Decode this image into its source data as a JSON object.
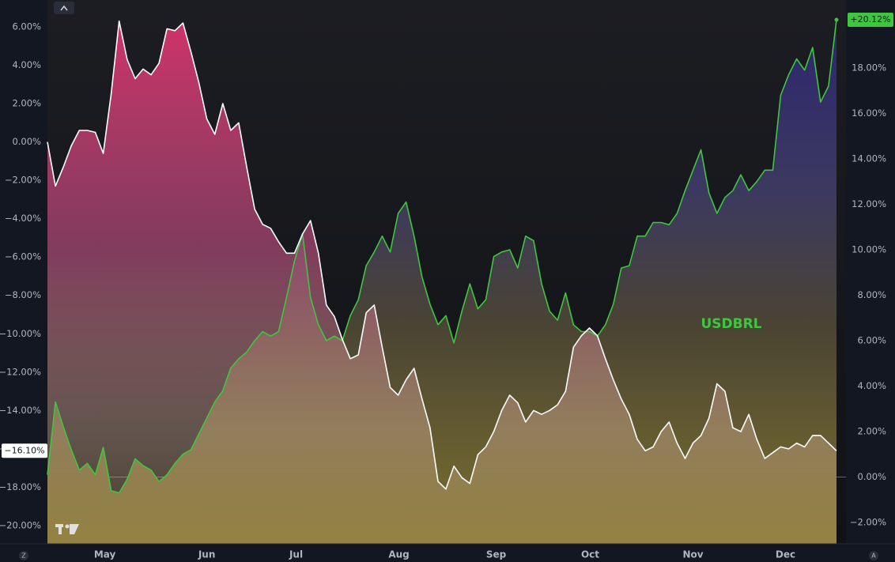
{
  "chart_data": {
    "type": "line",
    "xticks": [
      {
        "value": 7.2,
        "label": "May"
      },
      {
        "value": 20.0,
        "label": "Jun"
      },
      {
        "value": 31.2,
        "label": "Jul"
      },
      {
        "value": 44.1,
        "label": "Aug"
      },
      {
        "value": 56.3,
        "label": "Sep"
      },
      {
        "value": 68.1,
        "label": "Oct"
      },
      {
        "value": 81.0,
        "label": "Nov"
      },
      {
        "value": 92.6,
        "label": "Dec"
      }
    ],
    "ylim": [
      -20.95,
      7.4
    ],
    "yticks": [
      {
        "value": 6,
        "label": "6.00%"
      },
      {
        "value": 4,
        "label": "4.00%"
      },
      {
        "value": 2,
        "label": "2.00%"
      },
      {
        "value": 0,
        "label": "0.00%"
      },
      {
        "value": -2,
        "label": "−2.00%"
      },
      {
        "value": -4,
        "label": "−4.00%"
      },
      {
        "value": -6,
        "label": "−6.00%"
      },
      {
        "value": -8,
        "label": "−8.00%"
      },
      {
        "value": -10,
        "label": "−10.00%"
      },
      {
        "value": -12,
        "label": "−12.00%"
      },
      {
        "value": -14,
        "label": "−14.00%"
      },
      {
        "value": -16,
        "label": "−16.00%"
      },
      {
        "value": -18,
        "label": "−18.00%"
      },
      {
        "value": -20,
        "label": "−20.00%"
      }
    ],
    "y2lim": [
      -2.94,
      20.99
    ],
    "y2ticks": [
      {
        "value": 18,
        "label": "18.00%"
      },
      {
        "value": 16,
        "label": "16.00%"
      },
      {
        "value": 14,
        "label": "14.00%"
      },
      {
        "value": 12,
        "label": "12.00%"
      },
      {
        "value": 10,
        "label": "10.00%"
      },
      {
        "value": 8,
        "label": "8.00%"
      },
      {
        "value": 6,
        "label": "6.00%"
      },
      {
        "value": 4,
        "label": "4.00%"
      },
      {
        "value": 2,
        "label": "2.00%"
      },
      {
        "value": 0,
        "label": "0.00%"
      },
      {
        "value": -2,
        "label": "−2.00%"
      }
    ],
    "series": [
      {
        "color": "#ffffff",
        "axis": "y",
        "values": [
          0.0,
          -2.3,
          -1.3,
          -0.2,
          0.6,
          0.6,
          0.5,
          -0.6,
          2.5,
          6.3,
          4.3,
          3.3,
          3.8,
          3.5,
          4.1,
          5.9,
          5.8,
          6.2,
          4.7,
          3.1,
          1.2,
          0.4,
          2.0,
          0.6,
          1.0,
          -1.3,
          -3.5,
          -4.3,
          -4.5,
          -5.2,
          -5.8,
          -5.8,
          -4.8,
          -4.1,
          -5.8,
          -8.5,
          -9.1,
          -10.3,
          -11.3,
          -11.1,
          -8.9,
          -8.5,
          -10.7,
          -12.8,
          -13.2,
          -12.4,
          -11.8,
          -13.4,
          -14.9,
          -17.7,
          -18.1,
          -16.9,
          -17.5,
          -17.8,
          -16.3,
          -15.9,
          -15.1,
          -14.0,
          -13.2,
          -13.6,
          -14.6,
          -14.0,
          -14.2,
          -14.0,
          -13.7,
          -13.0,
          -10.7,
          -10.1,
          -9.7,
          -10.1,
          -11.3,
          -12.4,
          -13.4,
          -14.2,
          -15.5,
          -16.1,
          -15.9,
          -15.1,
          -14.6,
          -15.7,
          -16.5,
          -15.7,
          -15.3,
          -14.4,
          -12.6,
          -13.0,
          -14.9,
          -15.1,
          -14.2,
          -15.5,
          -16.5,
          -16.2,
          -15.9,
          -16.0,
          -15.7,
          -15.9,
          -15.3,
          -15.3,
          -15.7,
          -16.1
        ],
        "value_labels": [
          null,
          null,
          null,
          null,
          null,
          null,
          null,
          null,
          null,
          null,
          null,
          null,
          null,
          null,
          null,
          null,
          null,
          null,
          null,
          null,
          null,
          null,
          null,
          null,
          null,
          null,
          null,
          null,
          null,
          null,
          null,
          null,
          null,
          null,
          null,
          null,
          null,
          null,
          null,
          null,
          null,
          null,
          null,
          null,
          null,
          null,
          null,
          null,
          null,
          null,
          null,
          null,
          null,
          null,
          null,
          null,
          null,
          null,
          null,
          null,
          null,
          null,
          null,
          null,
          null,
          null,
          null,
          null,
          null,
          null,
          null,
          null,
          null,
          null,
          null,
          null,
          null,
          null,
          null,
          null,
          null,
          null,
          null,
          null,
          null,
          null,
          null,
          null,
          null,
          null,
          null,
          null,
          null,
          null,
          null,
          null,
          null,
          null,
          null,
          "−16.10%"
        ]
      },
      {
        "name": "USDBRL",
        "color": "#3fc63f",
        "axis": "y2",
        "values": [
          0.1,
          3.3,
          2.2,
          1.2,
          0.3,
          0.6,
          0.1,
          1.3,
          -0.6,
          -0.7,
          -0.1,
          0.8,
          0.5,
          0.3,
          -0.2,
          0.1,
          0.6,
          1.0,
          1.2,
          1.9,
          2.6,
          3.3,
          3.8,
          4.8,
          5.2,
          5.5,
          6.0,
          6.4,
          6.2,
          6.4,
          7.9,
          9.5,
          10.7,
          7.9,
          6.7,
          6.0,
          6.2,
          6.0,
          7.1,
          7.8,
          9.3,
          9.9,
          10.6,
          9.9,
          11.6,
          12.1,
          10.6,
          8.8,
          7.6,
          6.7,
          7.1,
          5.9,
          7.3,
          8.5,
          7.4,
          7.8,
          9.7,
          9.9,
          10.0,
          9.2,
          10.6,
          10.4,
          8.5,
          7.3,
          6.9,
          8.1,
          6.7,
          6.4,
          6.4,
          6.2,
          6.7,
          7.6,
          9.2,
          9.3,
          10.6,
          10.6,
          11.2,
          11.2,
          11.1,
          11.6,
          12.6,
          13.5,
          14.4,
          12.5,
          11.6,
          12.3,
          12.6,
          13.3,
          12.6,
          13.0,
          13.5,
          13.5,
          16.8,
          17.7,
          18.4,
          17.9,
          18.9,
          16.5,
          17.2,
          20.12
        ],
        "value_labels": [
          null,
          null,
          null,
          null,
          null,
          null,
          null,
          null,
          null,
          null,
          null,
          null,
          null,
          null,
          null,
          null,
          null,
          null,
          null,
          null,
          null,
          null,
          null,
          null,
          null,
          null,
          null,
          null,
          null,
          null,
          null,
          null,
          null,
          null,
          null,
          null,
          null,
          null,
          null,
          null,
          null,
          null,
          null,
          null,
          null,
          null,
          null,
          null,
          null,
          null,
          null,
          null,
          null,
          null,
          null,
          null,
          null,
          null,
          null,
          null,
          null,
          null,
          null,
          null,
          null,
          null,
          null,
          null,
          null,
          null,
          null,
          null,
          null,
          null,
          null,
          null,
          null,
          null,
          null,
          null,
          null,
          null,
          null,
          null,
          null,
          null,
          null,
          null,
          null,
          null,
          null,
          null,
          null,
          null,
          null,
          null,
          null,
          null,
          null,
          "+20.12%"
        ]
      }
    ]
  },
  "ui": {
    "left_button": "Z",
    "right_button": "A"
  }
}
